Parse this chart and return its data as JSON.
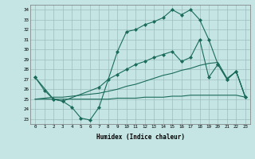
{
  "background_color": "#c5e5e5",
  "grid_color": "#9dbdbd",
  "line_color": "#1a6b5a",
  "xlabel": "Humidex (Indice chaleur)",
  "xlim": [
    -0.5,
    23.5
  ],
  "ylim": [
    22.5,
    34.5
  ],
  "yticks": [
    23,
    24,
    25,
    26,
    27,
    28,
    29,
    30,
    31,
    32,
    33,
    34
  ],
  "xticks": [
    0,
    1,
    2,
    3,
    4,
    5,
    6,
    7,
    8,
    9,
    10,
    11,
    12,
    13,
    14,
    15,
    16,
    17,
    18,
    19,
    20,
    21,
    22,
    23
  ],
  "line1_x": [
    0,
    1,
    2,
    3,
    4,
    5,
    6,
    7,
    9,
    10,
    11,
    12,
    13,
    14,
    15,
    16,
    17,
    18,
    19,
    20,
    21,
    22,
    23
  ],
  "line1_y": [
    27.2,
    25.9,
    25.0,
    24.8,
    24.2,
    23.1,
    22.9,
    24.2,
    29.8,
    31.8,
    32.0,
    32.5,
    32.8,
    33.2,
    34.0,
    33.5,
    34.0,
    33.0,
    31.0,
    28.5,
    27.0,
    27.8,
    25.2
  ],
  "line2_x": [
    0,
    2,
    3,
    7,
    8,
    9,
    10,
    11,
    12,
    13,
    14,
    15,
    16,
    17,
    18,
    19,
    20,
    21,
    22,
    23
  ],
  "line2_y": [
    27.2,
    25.0,
    24.8,
    26.2,
    27.0,
    27.5,
    28.0,
    28.5,
    28.8,
    29.2,
    29.5,
    29.8,
    28.8,
    29.2,
    31.0,
    27.2,
    28.5,
    27.0,
    27.8,
    25.2
  ],
  "line3_x": [
    0,
    1,
    2,
    3,
    4,
    5,
    6,
    7,
    8,
    9,
    10,
    11,
    12,
    13,
    14,
    15,
    16,
    17,
    18,
    19,
    20,
    21,
    22,
    23
  ],
  "line3_y": [
    25.0,
    25.1,
    25.2,
    25.2,
    25.3,
    25.4,
    25.5,
    25.6,
    25.8,
    26.0,
    26.3,
    26.5,
    26.8,
    27.1,
    27.4,
    27.6,
    27.9,
    28.1,
    28.4,
    28.6,
    28.7,
    27.1,
    27.8,
    25.2
  ],
  "line4_x": [
    0,
    1,
    2,
    3,
    4,
    5,
    6,
    7,
    8,
    9,
    10,
    11,
    12,
    13,
    14,
    15,
    16,
    17,
    18,
    19,
    20,
    21,
    22,
    23
  ],
  "line4_y": [
    25.0,
    25.0,
    25.0,
    25.0,
    25.0,
    25.0,
    25.0,
    25.0,
    25.0,
    25.1,
    25.1,
    25.1,
    25.2,
    25.2,
    25.2,
    25.3,
    25.3,
    25.4,
    25.4,
    25.4,
    25.4,
    25.4,
    25.4,
    25.2
  ]
}
